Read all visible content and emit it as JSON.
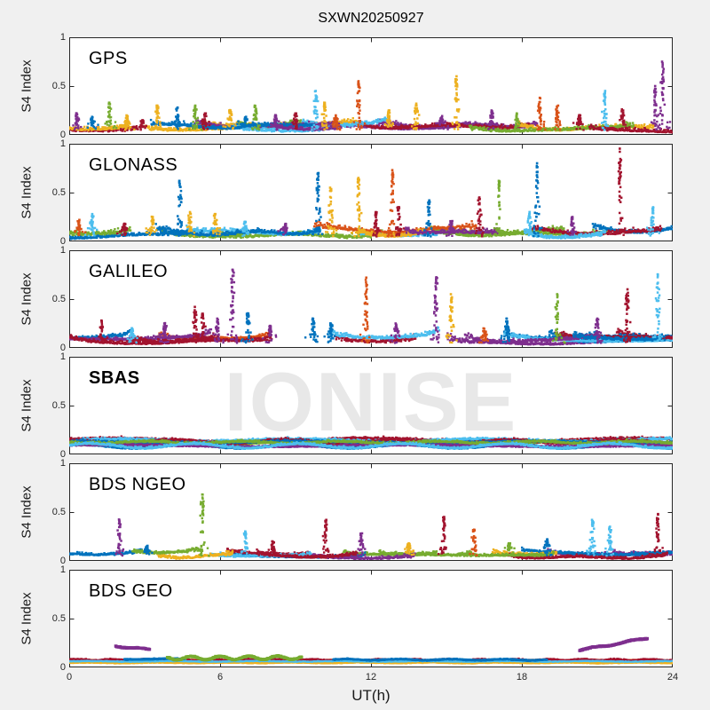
{
  "colors": {
    "background": "#f0f0f0",
    "plot_bg": "#ffffff",
    "axis": "#262626",
    "watermark_color": "#e8e8e8",
    "palette": [
      "#0072BD",
      "#D95319",
      "#EDB120",
      "#7E2F8E",
      "#77AC30",
      "#4DBEEE",
      "#A2142F"
    ]
  },
  "chart_data": {
    "type": "scatter",
    "title": "SXWN20250927",
    "xlabel": "UT(h)",
    "ylabel": "S4 Index",
    "watermark": "IONISE",
    "xlim": [
      0,
      24
    ],
    "xticks": [
      0,
      6,
      12,
      18,
      24
    ],
    "ylim": [
      0,
      1
    ],
    "yticks": [
      0,
      0.5,
      1
    ],
    "ytick_labels": [
      "0",
      "0.5",
      "1"
    ],
    "grid": false,
    "legend": "none",
    "panels": [
      {
        "id": "gps",
        "label": "GPS",
        "bold": false,
        "seed": 11,
        "tracks": {
          "count": 16,
          "base_lo": 0.02,
          "base_hi": 0.08,
          "noise": 0.028,
          "end_bump": 0.06,
          "len_lo": 2.5,
          "len_hi": 7,
          "full": false
        },
        "spikes": [
          [
            0.3,
            0.22,
            3
          ],
          [
            0.9,
            0.18,
            0
          ],
          [
            1.6,
            0.33,
            4
          ],
          [
            2.3,
            0.2,
            2
          ],
          [
            2.9,
            0.15,
            6
          ],
          [
            3.5,
            0.3,
            2
          ],
          [
            4.3,
            0.28,
            0
          ],
          [
            5.0,
            0.3,
            4
          ],
          [
            5.4,
            0.22,
            6
          ],
          [
            6.4,
            0.25,
            2
          ],
          [
            7.0,
            0.18,
            0
          ],
          [
            7.4,
            0.3,
            4
          ],
          [
            8.2,
            0.2,
            3
          ],
          [
            9.0,
            0.22,
            6
          ],
          [
            9.8,
            0.45,
            5
          ],
          [
            10.15,
            0.33,
            2
          ],
          [
            10.6,
            0.2,
            1
          ],
          [
            11.5,
            0.55,
            1
          ],
          [
            12.7,
            0.25,
            2
          ],
          [
            13.8,
            0.32,
            2
          ],
          [
            14.8,
            0.18,
            3
          ],
          [
            15.4,
            0.6,
            2
          ],
          [
            16.8,
            0.25,
            3
          ],
          [
            17.8,
            0.22,
            4
          ],
          [
            18.7,
            0.38,
            1
          ],
          [
            19.4,
            0.3,
            1
          ],
          [
            20.3,
            0.2,
            6
          ],
          [
            21.3,
            0.45,
            5
          ],
          [
            22.0,
            0.25,
            6
          ],
          [
            23.3,
            0.5,
            3
          ],
          [
            23.6,
            0.75,
            3
          ]
        ]
      },
      {
        "id": "glonass",
        "label": "GLONASS",
        "bold": false,
        "seed": 22,
        "tracks": {
          "count": 15,
          "base_lo": 0.02,
          "base_hi": 0.09,
          "noise": 0.03,
          "end_bump": 0.07,
          "len_lo": 2.5,
          "len_hi": 7,
          "full": false
        },
        "spikes": [
          [
            0.4,
            0.22,
            1
          ],
          [
            0.9,
            0.28,
            5
          ],
          [
            2.2,
            0.18,
            6
          ],
          [
            3.3,
            0.25,
            2
          ],
          [
            4.4,
            0.62,
            0
          ],
          [
            4.8,
            0.3,
            2
          ],
          [
            5.8,
            0.28,
            2
          ],
          [
            7.0,
            0.2,
            5
          ],
          [
            8.6,
            0.18,
            3
          ],
          [
            9.9,
            0.7,
            0
          ],
          [
            10.4,
            0.55,
            2
          ],
          [
            11.5,
            0.65,
            2
          ],
          [
            12.2,
            0.3,
            6
          ],
          [
            12.85,
            0.73,
            1
          ],
          [
            13.1,
            0.35,
            6
          ],
          [
            14.3,
            0.42,
            0
          ],
          [
            15.2,
            0.2,
            3
          ],
          [
            16.3,
            0.45,
            6
          ],
          [
            17.1,
            0.62,
            4
          ],
          [
            18.3,
            0.3,
            5
          ],
          [
            18.6,
            0.8,
            0
          ],
          [
            20.0,
            0.25,
            3
          ],
          [
            21.9,
            0.95,
            6
          ],
          [
            23.2,
            0.35,
            5
          ]
        ]
      },
      {
        "id": "galileo",
        "label": "GALILEO",
        "bold": false,
        "seed": 33,
        "tracks": {
          "count": 16,
          "base_lo": 0.03,
          "base_hi": 0.1,
          "noise": 0.025,
          "end_bump": 0.09,
          "len_lo": 3,
          "len_hi": 8,
          "full": false
        },
        "spikes": [
          [
            1.3,
            0.28,
            6
          ],
          [
            2.5,
            0.2,
            5
          ],
          [
            3.8,
            0.25,
            3
          ],
          [
            5.0,
            0.42,
            6
          ],
          [
            5.3,
            0.35,
            6
          ],
          [
            5.9,
            0.3,
            3
          ],
          [
            6.5,
            0.8,
            3
          ],
          [
            7.1,
            0.35,
            0
          ],
          [
            8.0,
            0.22,
            3
          ],
          [
            9.7,
            0.3,
            0
          ],
          [
            10.4,
            0.25,
            0
          ],
          [
            11.8,
            0.72,
            1
          ],
          [
            13.0,
            0.25,
            3
          ],
          [
            14.6,
            0.72,
            3
          ],
          [
            15.2,
            0.55,
            2
          ],
          [
            16.5,
            0.2,
            1
          ],
          [
            17.4,
            0.3,
            0
          ],
          [
            19.4,
            0.55,
            4
          ],
          [
            21.0,
            0.3,
            3
          ],
          [
            22.2,
            0.6,
            6
          ],
          [
            23.4,
            0.75,
            5
          ]
        ]
      },
      {
        "id": "sbas",
        "label": "SBAS",
        "bold": true,
        "seed": 44,
        "tracks": {
          "count": 9,
          "base_lo": 0.05,
          "base_hi": 0.13,
          "noise": 0.018,
          "end_bump": 0,
          "len_lo": 24,
          "len_hi": 24,
          "full": true,
          "colors": [
            6,
            0,
            4,
            5,
            6,
            0,
            3,
            4,
            5
          ]
        },
        "spikes": []
      },
      {
        "id": "bds-ngeo",
        "label": "BDS NGEO",
        "bold": false,
        "seed": 55,
        "tracks": {
          "count": 16,
          "base_lo": 0.015,
          "base_hi": 0.07,
          "noise": 0.022,
          "end_bump": 0.05,
          "len_lo": 2.5,
          "len_hi": 7,
          "full": false
        },
        "spikes": [
          [
            2.0,
            0.42,
            3
          ],
          [
            3.1,
            0.15,
            0
          ],
          [
            5.3,
            0.68,
            4
          ],
          [
            7.0,
            0.3,
            5
          ],
          [
            8.1,
            0.2,
            6
          ],
          [
            10.2,
            0.42,
            6
          ],
          [
            11.6,
            0.28,
            3
          ],
          [
            13.5,
            0.18,
            2
          ],
          [
            14.9,
            0.45,
            6
          ],
          [
            16.1,
            0.32,
            1
          ],
          [
            17.5,
            0.18,
            4
          ],
          [
            19.0,
            0.22,
            0
          ],
          [
            20.8,
            0.42,
            5
          ],
          [
            21.5,
            0.35,
            5
          ],
          [
            23.4,
            0.48,
            6
          ]
        ]
      },
      {
        "id": "bds-geo",
        "label": "BDS GEO",
        "bold": false,
        "seed": 66,
        "spikes": [],
        "lines": [
          {
            "x0": 0,
            "x1": 24,
            "y0": 0.068,
            "y1": 0.068,
            "color": 1,
            "amp": 0.004,
            "freq": 3.1,
            "size": 3.2,
            "noise": 0.004
          },
          {
            "x0": 0,
            "x1": 24,
            "y0": 0.052,
            "y1": 0.052,
            "color": 2,
            "amp": 0.003,
            "freq": 2.3,
            "size": 3.0,
            "noise": 0.004
          },
          {
            "x0": 0,
            "x1": 24,
            "y0": 0.078,
            "y1": 0.078,
            "color": 6,
            "amp": 0.006,
            "freq": 4.7,
            "size": 2.2,
            "noise": 0.006
          },
          {
            "x0": 0,
            "x1": 24,
            "y0": 0.062,
            "y1": 0.062,
            "color": 5,
            "amp": 0.003,
            "freq": 1.9,
            "size": 2.0,
            "noise": 0.004
          },
          {
            "x0": 2.2,
            "x1": 4.6,
            "y0": 0.085,
            "y1": 0.085,
            "color": 0,
            "amp": 0.004,
            "freq": 2.0,
            "size": 2.6,
            "noise": 0.004
          },
          {
            "x0": 10.5,
            "x1": 19.0,
            "y0": 0.08,
            "y1": 0.078,
            "color": 0,
            "amp": 0.006,
            "freq": 3.0,
            "size": 2.4,
            "noise": 0.005
          },
          {
            "x0": 1.85,
            "x1": 3.2,
            "y0": 0.215,
            "y1": 0.185,
            "color": 3,
            "amp": 0.006,
            "freq": 5.0,
            "size": 3.4,
            "noise": 0.004
          },
          {
            "x0": 3.9,
            "x1": 9.25,
            "y0": 0.095,
            "y1": 0.1,
            "color": 4,
            "amp": 0.018,
            "freq": 5.5,
            "size": 3.2,
            "noise": 0.005
          },
          {
            "x0": 20.3,
            "x1": 23.0,
            "y0": 0.175,
            "y1": 0.3,
            "color": 3,
            "amp": 0.008,
            "freq": 4.0,
            "size": 3.4,
            "noise": 0.004
          }
        ]
      }
    ]
  }
}
